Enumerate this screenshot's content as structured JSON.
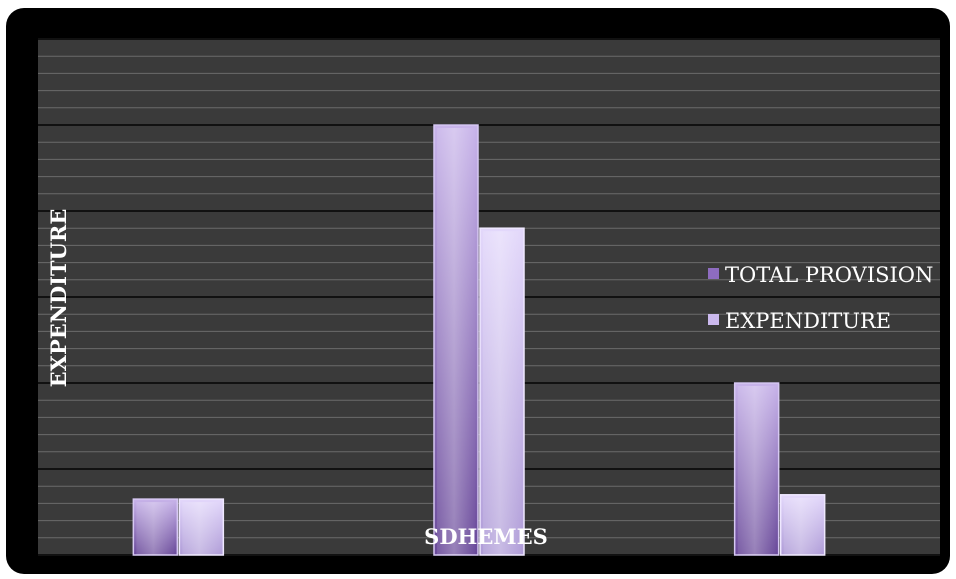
{
  "chart_data": {
    "type": "bar",
    "categories": [
      "",
      "",
      ""
    ],
    "series": [
      {
        "name": "TOTAL PROVISION",
        "values": [
          6.5,
          50,
          20
        ]
      },
      {
        "name": "EXPENDITURE",
        "values": [
          6.5,
          38,
          7
        ]
      }
    ],
    "xlabel": "SDHEMES",
    "ylabel": "EXPENDITURE",
    "ylim": [
      0,
      60
    ],
    "grid": true,
    "legend": "right",
    "colors": {
      "plot_background": "#3a3a3a",
      "frame": "#000000",
      "grid_major": "#111111",
      "grid_minor": "#6a6a6a",
      "total_provision": "#7a56a8",
      "expenditure": "#cbb9ee"
    }
  }
}
